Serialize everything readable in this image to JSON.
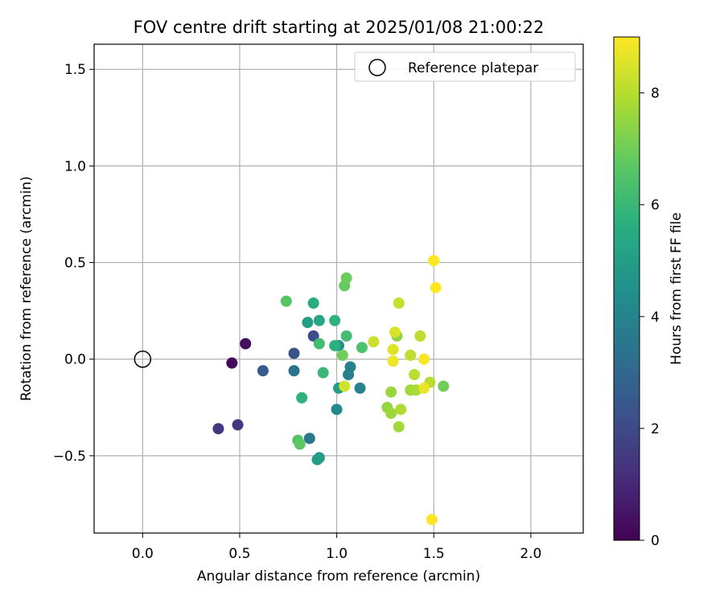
{
  "chart_data": {
    "type": "scatter",
    "title": "FOV centre drift starting at 2025/01/08 21:00:22",
    "xlabel": "Angular distance from reference (arcmin)",
    "ylabel": "Rotation from reference (arcmin)",
    "xlim": [
      -0.25,
      2.27
    ],
    "ylim": [
      -0.9,
      1.63
    ],
    "xticks": [
      0.0,
      0.5,
      1.0,
      1.5,
      2.0
    ],
    "xtick_labels": [
      "0.0",
      "0.5",
      "1.0",
      "1.5",
      "2.0"
    ],
    "yticks": [
      -0.5,
      0.0,
      0.5,
      1.0,
      1.5
    ],
    "ytick_labels": [
      "−0.5",
      "0.0",
      "0.5",
      "1.0",
      "1.5"
    ],
    "grid": true,
    "legend": {
      "placement": "top-right",
      "label": "Reference platepar"
    },
    "reference_point": {
      "x": 0.0,
      "y": 0.0
    },
    "colorbar": {
      "label": "Hours from first FF file",
      "min": 0,
      "max": 9,
      "ticks": [
        0,
        2,
        4,
        6,
        8
      ],
      "colormap": "viridis"
    },
    "points": [
      {
        "x": 0.46,
        "y": -0.02,
        "c": 0.2
      },
      {
        "x": 0.53,
        "y": 0.08,
        "c": 0.3
      },
      {
        "x": 0.39,
        "y": -0.36,
        "c": 1.4
      },
      {
        "x": 0.49,
        "y": -0.34,
        "c": 1.5
      },
      {
        "x": 0.62,
        "y": -0.06,
        "c": 2.5
      },
      {
        "x": 0.78,
        "y": 0.03,
        "c": 2.3
      },
      {
        "x": 0.88,
        "y": 0.12,
        "c": 2.1
      },
      {
        "x": 0.78,
        "y": -0.06,
        "c": 3.4
      },
      {
        "x": 0.86,
        "y": -0.41,
        "c": 3.6
      },
      {
        "x": 1.07,
        "y": -0.04,
        "c": 3.9
      },
      {
        "x": 1.06,
        "y": -0.08,
        "c": 3.8
      },
      {
        "x": 1.12,
        "y": -0.15,
        "c": 4.0
      },
      {
        "x": 1.0,
        "y": -0.26,
        "c": 4.2
      },
      {
        "x": 1.01,
        "y": 0.07,
        "c": 4.5
      },
      {
        "x": 0.91,
        "y": -0.51,
        "c": 4.8
      },
      {
        "x": 0.9,
        "y": -0.52,
        "c": 5.0
      },
      {
        "x": 0.85,
        "y": 0.19,
        "c": 5.0
      },
      {
        "x": 0.91,
        "y": 0.2,
        "c": 5.3
      },
      {
        "x": 0.88,
        "y": 0.29,
        "c": 5.5
      },
      {
        "x": 1.01,
        "y": -0.15,
        "c": 5.0
      },
      {
        "x": 0.99,
        "y": 0.2,
        "c": 5.8
      },
      {
        "x": 0.99,
        "y": 0.07,
        "c": 5.7
      },
      {
        "x": 0.82,
        "y": -0.2,
        "c": 5.8
      },
      {
        "x": 0.93,
        "y": -0.07,
        "c": 6.0
      },
      {
        "x": 0.91,
        "y": 0.08,
        "c": 6.2
      },
      {
        "x": 1.05,
        "y": 0.12,
        "c": 6.2
      },
      {
        "x": 1.13,
        "y": 0.06,
        "c": 6.4
      },
      {
        "x": 0.74,
        "y": 0.3,
        "c": 6.6
      },
      {
        "x": 0.8,
        "y": -0.42,
        "c": 6.5
      },
      {
        "x": 0.81,
        "y": -0.44,
        "c": 6.7
      },
      {
        "x": 1.04,
        "y": 0.38,
        "c": 6.8
      },
      {
        "x": 1.05,
        "y": 0.42,
        "c": 6.9
      },
      {
        "x": 1.03,
        "y": 0.02,
        "c": 7.0
      },
      {
        "x": 1.55,
        "y": -0.14,
        "c": 7.0
      },
      {
        "x": 1.31,
        "y": 0.12,
        "c": 7.4
      },
      {
        "x": 1.26,
        "y": -0.25,
        "c": 7.5
      },
      {
        "x": 1.28,
        "y": -0.28,
        "c": 7.6
      },
      {
        "x": 1.28,
        "y": -0.17,
        "c": 7.6
      },
      {
        "x": 1.32,
        "y": -0.35,
        "c": 7.7
      },
      {
        "x": 1.38,
        "y": -0.16,
        "c": 7.7
      },
      {
        "x": 1.41,
        "y": -0.16,
        "c": 7.8
      },
      {
        "x": 1.33,
        "y": -0.26,
        "c": 7.9
      },
      {
        "x": 1.4,
        "y": -0.08,
        "c": 8.0
      },
      {
        "x": 1.38,
        "y": 0.02,
        "c": 8.1
      },
      {
        "x": 1.43,
        "y": 0.12,
        "c": 8.1
      },
      {
        "x": 1.48,
        "y": -0.12,
        "c": 8.0
      },
      {
        "x": 1.32,
        "y": 0.29,
        "c": 8.2
      },
      {
        "x": 1.19,
        "y": 0.09,
        "c": 8.3
      },
      {
        "x": 1.04,
        "y": -0.14,
        "c": 8.4
      },
      {
        "x": 1.3,
        "y": 0.14,
        "c": 8.5
      },
      {
        "x": 1.29,
        "y": 0.05,
        "c": 8.6
      },
      {
        "x": 1.45,
        "y": -0.15,
        "c": 8.7
      },
      {
        "x": 1.29,
        "y": -0.01,
        "c": 8.8
      },
      {
        "x": 1.45,
        "y": 0.0,
        "c": 8.9
      },
      {
        "x": 1.5,
        "y": 0.51,
        "c": 9.0
      },
      {
        "x": 1.51,
        "y": 0.37,
        "c": 9.0
      },
      {
        "x": 1.49,
        "y": -0.83,
        "c": 9.0
      }
    ]
  }
}
